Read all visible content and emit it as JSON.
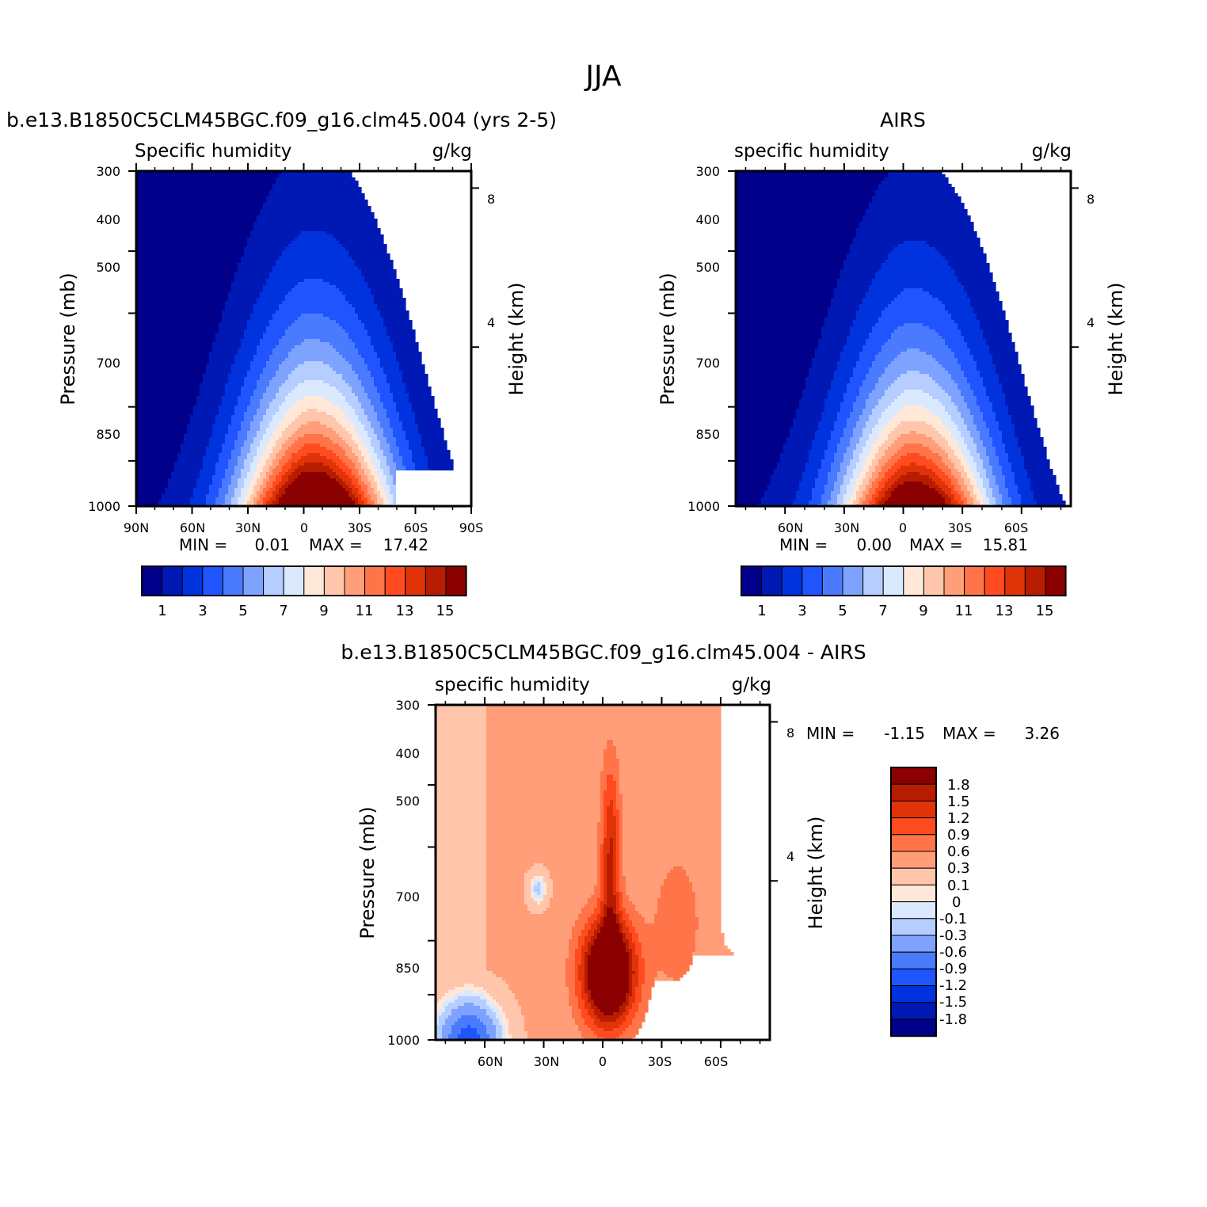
{
  "page_title": "JJA",
  "colors": {
    "palette": [
      "#00008b",
      "#0019b5",
      "#0033dd",
      "#1f54ff",
      "#4a7bff",
      "#7ea3ff",
      "#b5cdff",
      "#dbe9ff",
      "#ffe8d8",
      "#ffc6ab",
      "#ff9e78",
      "#ff7549",
      "#ff4b1f",
      "#e03308",
      "#b81c00",
      "#8b0000"
    ],
    "blank": "#ffffff"
  },
  "chart_data": [
    {
      "type": "contour",
      "title_left": "b.e13.B1850C5CLM45BGC.f09_g16.clm45.004 (yrs 2-5)",
      "subtitle_left": "Specific humidity",
      "units": "g/kg",
      "ylabel": "Pressure (mb)",
      "ylabel_right": "Height (km)",
      "x_ticks": [
        "90N",
        "60N",
        "30N",
        "0",
        "30S",
        "60S",
        "90S"
      ],
      "y_ticks": [
        "300",
        "400",
        "500",
        "700",
        "850",
        "1000"
      ],
      "y_ticks_right": [
        "8",
        "4"
      ],
      "ylim": [
        1000,
        300
      ],
      "stats": {
        "min_label": "MIN =",
        "min": "0.01",
        "max_label": "MAX =",
        "max": "17.42"
      },
      "colorbar": {
        "orientation": "horizontal",
        "labels": [
          "1",
          "3",
          "5",
          "7",
          "9",
          "11",
          "13",
          "15"
        ]
      },
      "peak_value": 17.42,
      "peak_lat": -7,
      "peak_spread": 1.0
    },
    {
      "type": "contour",
      "title_right": "AIRS",
      "subtitle_left": "specific humidity",
      "units": "g/kg",
      "ylabel": "Pressure (mb)",
      "ylabel_right": "Height (km)",
      "x_ticks": [
        "60N",
        "30N",
        "0",
        "30S",
        "60S"
      ],
      "y_ticks": [
        "300",
        "400",
        "500",
        "700",
        "850",
        "1000"
      ],
      "y_ticks_right": [
        "8",
        "4"
      ],
      "ylim": [
        1000,
        300
      ],
      "stats": {
        "min_label": "MIN =",
        "min": "0.00",
        "max_label": "MAX =",
        "max": "15.81"
      },
      "colorbar": {
        "orientation": "horizontal",
        "labels": [
          "1",
          "3",
          "5",
          "7",
          "9",
          "11",
          "13",
          "15"
        ]
      },
      "peak_value": 15.81,
      "peak_lat": -7,
      "peak_spread": 0.92
    },
    {
      "type": "contour",
      "title_center": "b.e13.B1850C5CLM45BGC.f09_g16.clm45.004 - AIRS",
      "subtitle_left": "specific humidity",
      "units": "g/kg",
      "ylabel": "Pressure (mb)",
      "ylabel_right": "Height (km)",
      "x_ticks": [
        "60N",
        "30N",
        "0",
        "30S",
        "60S"
      ],
      "y_ticks": [
        "300",
        "400",
        "500",
        "700",
        "850",
        "1000"
      ],
      "y_ticks_right": [
        "8",
        "4"
      ],
      "ylim": [
        1000,
        300
      ],
      "stats": {
        "min_label": "MIN =",
        "min": "-1.15",
        "max_label": "MAX =",
        "max": "3.26"
      },
      "colorbar": {
        "orientation": "vertical",
        "labels": [
          "1.8",
          "1.5",
          "1.2",
          "0.9",
          "0.6",
          "0.3",
          "0.1",
          "0",
          "-0.1",
          "-0.3",
          "-0.6",
          "-0.9",
          "-1.2",
          "-1.5",
          "-1.8"
        ]
      }
    }
  ]
}
